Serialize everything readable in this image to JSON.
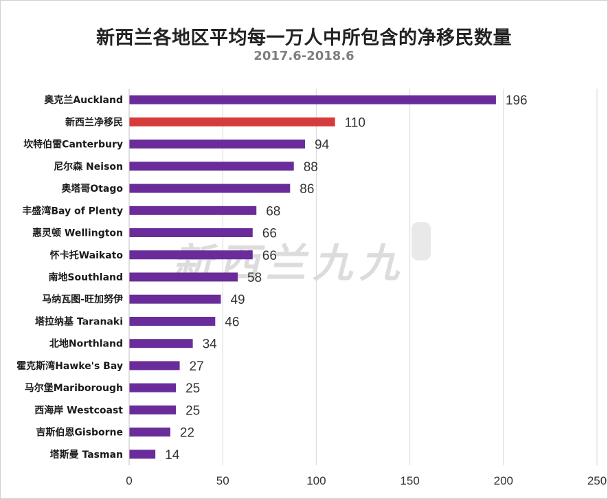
{
  "title": "新西兰各地区平均每一万人中所包含的净移民数量",
  "subtitle": "2017.6-2018.6",
  "colors": {
    "default_bar": "#6a2c9a",
    "highlight_bar": "#d63b3b",
    "grid": "#d9d9d9"
  },
  "watermark_text": "新西兰九九",
  "chart_data": {
    "type": "bar",
    "orientation": "horizontal",
    "title": "新西兰各地区平均每一万人中所包含的净移民数量",
    "subtitle": "2017.6-2018.6",
    "categories": [
      "奥克兰Auckland",
      "新西兰净移民",
      "坎特伯雷Canterbury",
      "尼尔森 Neison",
      "奥塔哥Otago",
      "丰盛湾Bay of Plenty",
      "惠灵顿 Wellington",
      "怀卡托Waikato",
      "南地Southland",
      "马纳瓦图-旺加努伊",
      "塔拉纳基 Taranaki",
      "北地Northland",
      "霍克斯湾Hawke's Bay",
      "马尔堡Mariborough",
      "西海岸 Westcoast",
      "吉斯伯恩Gisborne",
      "塔斯曼 Tasman"
    ],
    "values": [
      196,
      110,
      94,
      88,
      86,
      68,
      66,
      66,
      58,
      49,
      46,
      34,
      27,
      25,
      25,
      22,
      14
    ],
    "highlight_index": 1,
    "xlim": [
      0,
      250
    ],
    "xticks": [
      0,
      50,
      100,
      150,
      200,
      250
    ],
    "grid": "vertical",
    "legend": "none",
    "xlabel": "",
    "ylabel": ""
  }
}
